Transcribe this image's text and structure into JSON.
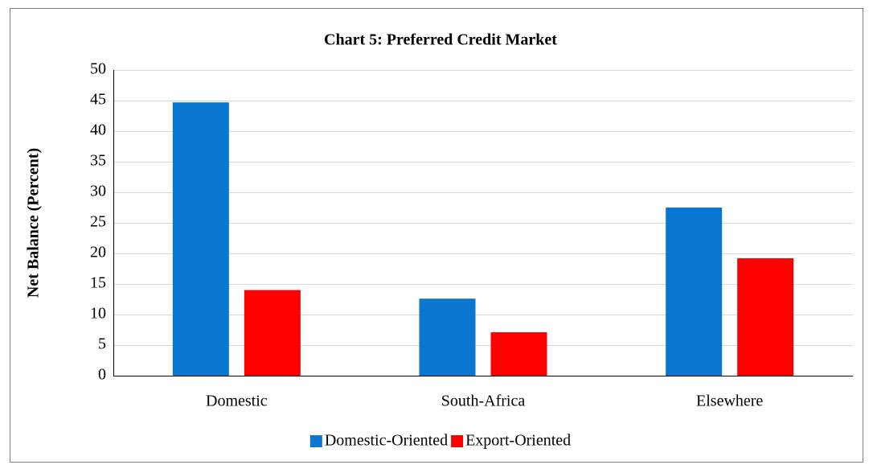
{
  "chart_data": {
    "type": "bar",
    "title": "Chart 5: Preferred Credit Market",
    "y_label": "Net Balance (Percent)",
    "categories": [
      "Domestic",
      "South-Africa",
      "Elsewhere"
    ],
    "series": [
      {
        "name": "Domestic-Oriented",
        "color": "#0a77d0",
        "values": [
          44.7,
          12.6,
          27.5
        ]
      },
      {
        "name": "Export-Oriented",
        "color": "#fe0000",
        "values": [
          14.0,
          7.1,
          19.2
        ]
      }
    ],
    "ylim": [
      0,
      50
    ],
    "yticks": [
      0,
      5,
      10,
      15,
      20,
      25,
      30,
      35,
      40,
      45,
      50
    ],
    "grid": true,
    "legend": "bottom"
  }
}
